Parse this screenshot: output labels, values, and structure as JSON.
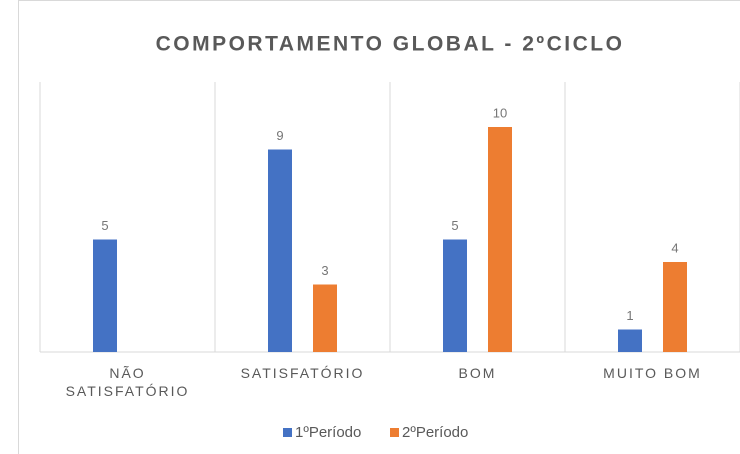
{
  "chart_data": {
    "type": "bar",
    "title": "COMPORTAMENTO GLOBAL - 2ºCICLO",
    "categories": [
      "NÃO SATISFATÓRIO",
      "SATISFATÓRIO",
      "BOM",
      "MUITO BOM"
    ],
    "series": [
      {
        "name": "1ºPeríodo",
        "color": "#4472c4",
        "values": [
          5,
          9,
          5,
          1
        ]
      },
      {
        "name": "2ºPeríodo",
        "color": "#ed7d31",
        "values": [
          null,
          3,
          10,
          4
        ]
      }
    ],
    "ylim": [
      0,
      12
    ],
    "legend": "bottom"
  }
}
